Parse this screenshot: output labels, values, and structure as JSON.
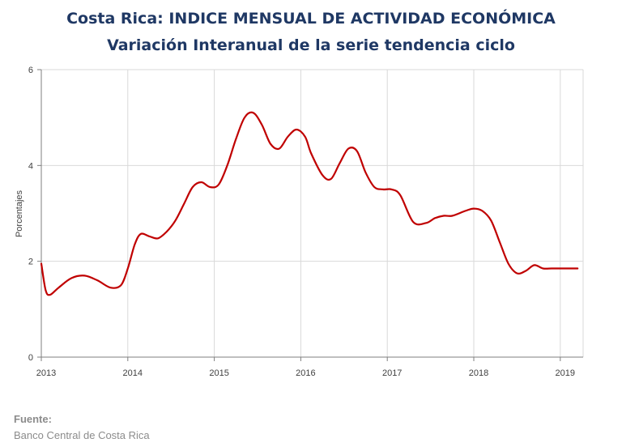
{
  "chart_data": {
    "type": "line",
    "title": "Costa Rica: INDICE MENSUAL DE ACTIVIDAD ECONÓMICA",
    "subtitle": "Variación Interanual de la serie tendencia ciclo",
    "xlabel": "",
    "ylabel": "Porcentajes",
    "xlim": [
      2013,
      2019.3
    ],
    "ylim": [
      0,
      6
    ],
    "yticks": [
      "0",
      "2",
      "4",
      "6"
    ],
    "xticks": [
      "2013",
      "2014",
      "2015",
      "2016",
      "2017",
      "2018",
      "2019"
    ],
    "grid": true,
    "line_color": "#c00000",
    "series": [
      {
        "name": "",
        "x": [
          2013.0,
          2013.05,
          2013.1,
          2013.2,
          2013.35,
          2013.5,
          2013.65,
          2013.8,
          2013.92,
          2014.0,
          2014.08,
          2014.15,
          2014.25,
          2014.35,
          2014.45,
          2014.55,
          2014.65,
          2014.75,
          2014.85,
          2014.95,
          2015.05,
          2015.15,
          2015.25,
          2015.35,
          2015.45,
          2015.55,
          2015.65,
          2015.75,
          2015.85,
          2015.95,
          2016.05,
          2016.12,
          2016.25,
          2016.35,
          2016.45,
          2016.55,
          2016.65,
          2016.75,
          2016.85,
          2016.95,
          2017.05,
          2017.15,
          2017.3,
          2017.45,
          2017.55,
          2017.65,
          2017.75,
          2017.9,
          2018.0,
          2018.1,
          2018.2,
          2018.3,
          2018.4,
          2018.5,
          2018.6,
          2018.7,
          2018.8,
          2018.9,
          2019.0,
          2019.1,
          2019.2
        ],
        "values": [
          1.95,
          1.4,
          1.3,
          1.45,
          1.65,
          1.7,
          1.6,
          1.45,
          1.5,
          1.85,
          2.35,
          2.57,
          2.52,
          2.48,
          2.62,
          2.85,
          3.2,
          3.55,
          3.65,
          3.55,
          3.6,
          4.0,
          4.55,
          5.0,
          5.1,
          4.85,
          4.45,
          4.35,
          4.6,
          4.75,
          4.6,
          4.25,
          3.8,
          3.72,
          4.05,
          4.35,
          4.3,
          3.85,
          3.55,
          3.5,
          3.5,
          3.38,
          2.82,
          2.8,
          2.9,
          2.95,
          2.95,
          3.05,
          3.1,
          3.05,
          2.85,
          2.4,
          1.95,
          1.75,
          1.8,
          1.92,
          1.85,
          1.85,
          1.85,
          1.85,
          1.85
        ]
      }
    ]
  },
  "footer": {
    "label": "Fuente:",
    "source": "Banco Central de Costa Rica"
  }
}
